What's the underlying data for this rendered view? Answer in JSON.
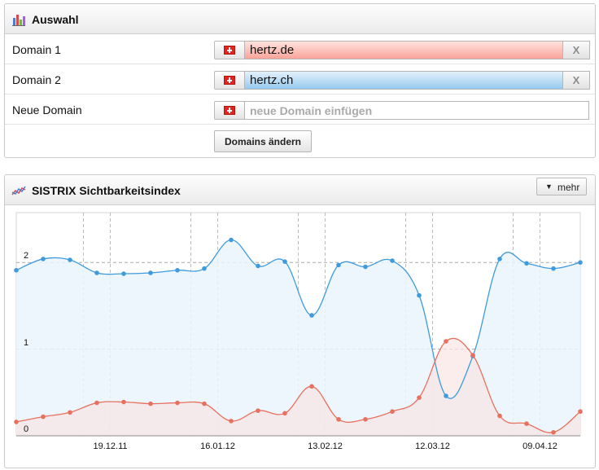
{
  "selection": {
    "title": "Auswahl",
    "icon": "bar-chart-icon",
    "rows": [
      {
        "label": "Domain 1",
        "value": "hertz.de",
        "flag": "swiss-flag-icon",
        "clear": "X",
        "color": "#f28b7f"
      },
      {
        "label": "Domain 2",
        "value": "hertz.ch",
        "flag": "swiss-flag-icon",
        "clear": "X",
        "color": "#5aa9e6"
      },
      {
        "label": "Neue Domain",
        "placeholder": "neue Domain einfügen",
        "flag": "swiss-flag-icon"
      }
    ],
    "submit_label": "Domains ändern"
  },
  "visibility": {
    "title": "SISTRIX Sichtbarkeitsindex",
    "icon": "line-chart-icon",
    "more_label": "mehr"
  },
  "chart_data": {
    "type": "line",
    "title": "SISTRIX Sichtbarkeitsindex",
    "x_tick_labels": [
      "19.12.11",
      "16.01.12",
      "13.02.12",
      "12.03.12",
      "09.04.12"
    ],
    "x_tick_positions": [
      3.5,
      7.5,
      11.5,
      15.5,
      19.5
    ],
    "y_ticks": [
      0,
      1,
      2
    ],
    "ylim": [
      0,
      2.5
    ],
    "grid": true,
    "series": [
      {
        "name": "hertz.ch",
        "color": "#3f9bdc",
        "x": [
          0,
          1,
          2,
          3,
          4,
          5,
          6,
          7,
          8,
          9,
          10,
          11,
          12,
          13,
          14,
          15,
          16,
          17,
          18,
          19,
          20,
          21
        ],
        "values": [
          1.91,
          2.04,
          2.03,
          1.88,
          1.87,
          1.88,
          1.91,
          1.93,
          2.26,
          1.96,
          2.01,
          1.39,
          1.97,
          1.95,
          2.02,
          1.62,
          0.46,
          0.92,
          2.04,
          1.99,
          1.93,
          2.0
        ]
      },
      {
        "name": "hertz.de",
        "color": "#e8705e",
        "x": [
          0,
          1,
          2,
          3,
          4,
          5,
          6,
          7,
          8,
          9,
          10,
          11,
          12,
          13,
          14,
          15,
          16,
          17,
          18,
          19,
          20,
          21
        ],
        "values": [
          0.16,
          0.22,
          0.27,
          0.38,
          0.39,
          0.37,
          0.38,
          0.37,
          0.17,
          0.29,
          0.26,
          0.57,
          0.19,
          0.19,
          0.28,
          0.44,
          1.09,
          0.93,
          0.23,
          0.14,
          0.04,
          0.28
        ]
      }
    ]
  },
  "colors": {
    "blue_line": "#3f9bdc",
    "red_line": "#e8705e",
    "blue_fill": "#e9f4fc",
    "red_fill": "#f8e6e4"
  }
}
